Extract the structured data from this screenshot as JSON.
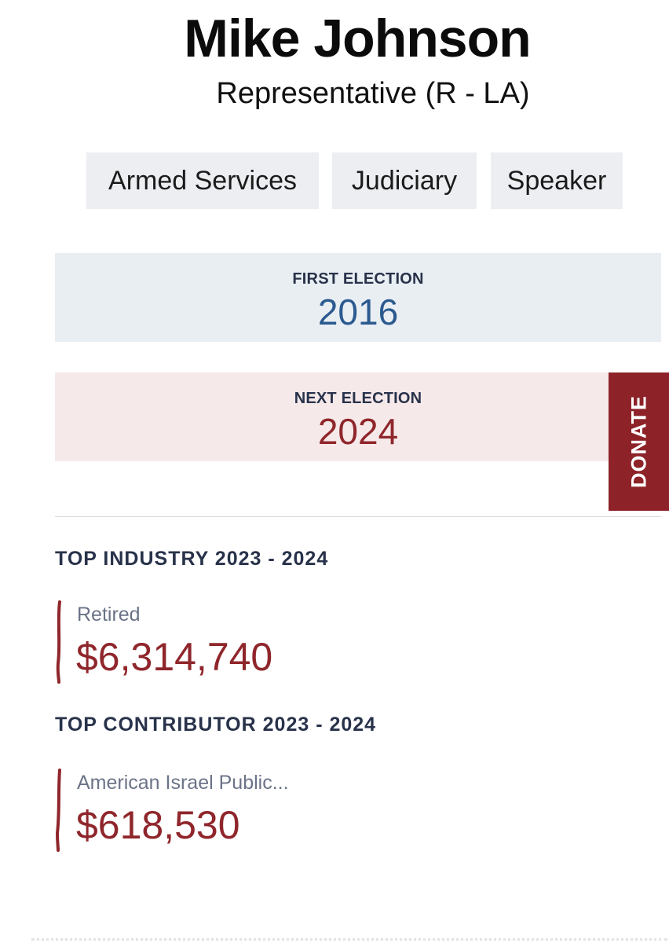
{
  "profile": {
    "name": "Mike Johnson",
    "role": "Representative (R - LA)"
  },
  "committees": [
    "Armed Services",
    "Judiciary",
    "Speaker"
  ],
  "first_election": {
    "label": "FIRST ELECTION",
    "year": "2016"
  },
  "next_election": {
    "label": "NEXT ELECTION",
    "year": "2024"
  },
  "donate_label": "DONATE",
  "top_industry": {
    "title": "TOP INDUSTRY 2023 - 2024",
    "name": "Retired",
    "amount": "$6,314,740"
  },
  "top_contributor": {
    "title": "TOP CONTRIBUTOR 2023 - 2024",
    "name": "American Israel Public...",
    "amount": "$618,530"
  },
  "colors": {
    "accent_red": "#8f262b",
    "accent_blue": "#2b5a8f",
    "chip_bg": "#eceef2",
    "donate_bg": "#8d2328"
  }
}
